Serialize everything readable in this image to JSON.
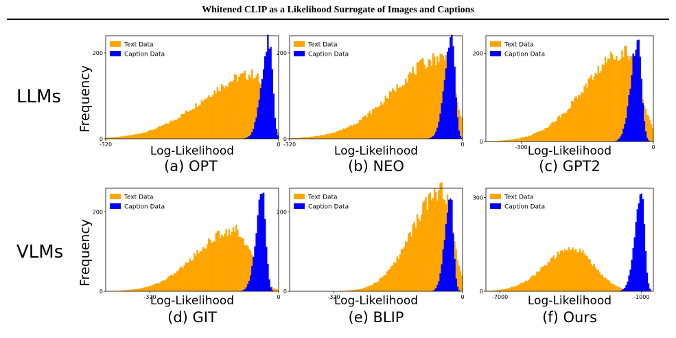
{
  "header": {
    "title": "Whitened CLIP as a Likelihood Surrogate of Images and Captions"
  },
  "rows": {
    "top_label": "LLMs",
    "bottom_label": "VLMs",
    "ylabel": "Frequency"
  },
  "colors": {
    "text": "#FFA500",
    "caption": "#0000FF"
  },
  "chart_data": [
    {
      "id": "a",
      "type": "histogram",
      "caption": "(a) OPT",
      "xlabel": "Log-Likelihood",
      "ylabel": "Frequency",
      "legend": [
        "Text Data",
        "Caption Data"
      ],
      "legend_position": "top-left",
      "x_ticks": [
        "-320",
        "0"
      ],
      "y_ticks": [
        "200",
        "0"
      ],
      "ylim": [
        0,
        240
      ],
      "xlim": [
        -320,
        0
      ],
      "series": [
        {
          "name": "Text Data",
          "color": "#FFA500",
          "peak_x": -45,
          "peak_y": 150,
          "spread_left": 95,
          "spread_right": 20
        },
        {
          "name": "Caption Data",
          "color": "#0000FF",
          "peak_x": -17,
          "peak_y": 230,
          "spread_left": 14,
          "spread_right": 6
        }
      ]
    },
    {
      "id": "b",
      "type": "histogram",
      "caption": "(b) NEO",
      "xlabel": "Log-Likelihood",
      "ylabel": "Frequency",
      "legend": [
        "Text Data",
        "Caption Data"
      ],
      "legend_position": "top-left",
      "x_ticks": [
        "-320",
        "0"
      ],
      "y_ticks": [
        "200",
        "0"
      ],
      "ylim": [
        0,
        240
      ],
      "xlim": [
        -320,
        0
      ],
      "series": [
        {
          "name": "Text Data",
          "color": "#FFA500",
          "peak_x": -35,
          "peak_y": 190,
          "spread_left": 90,
          "spread_right": 20
        },
        {
          "name": "Caption Data",
          "color": "#0000FF",
          "peak_x": -20,
          "peak_y": 230,
          "spread_left": 13,
          "spread_right": 6
        }
      ]
    },
    {
      "id": "c",
      "type": "histogram",
      "caption": "(c) GPT2",
      "xlabel": "Log-Likelihood",
      "ylabel": "Frequency",
      "legend": [
        "Text Data",
        "Caption Data"
      ],
      "legend_position": "top-left",
      "x_ticks": [
        "-300",
        "0"
      ],
      "y_ticks": [
        "200",
        "0"
      ],
      "ylim": [
        0,
        240
      ],
      "xlim": [
        -380,
        0
      ],
      "series": [
        {
          "name": "Text Data",
          "color": "#FFA500",
          "peak_x": -60,
          "peak_y": 205,
          "spread_left": 95,
          "spread_right": 30
        },
        {
          "name": "Caption Data",
          "color": "#0000FF",
          "peak_x": -35,
          "peak_y": 235,
          "spread_left": 16,
          "spread_right": 8
        }
      ]
    },
    {
      "id": "d",
      "type": "histogram",
      "caption": "(d) GIT",
      "xlabel": "Log-Likelihood",
      "ylabel": "Frequency",
      "legend": [
        "Text Data",
        "Caption Data"
      ],
      "legend_position": "top-left",
      "x_ticks": [
        "-320",
        "0"
      ],
      "y_ticks": [
        "200",
        "0"
      ],
      "ylim": [
        0,
        260
      ],
      "xlim": [
        -430,
        0
      ],
      "series": [
        {
          "name": "Text Data",
          "color": "#FFA500",
          "peak_x": -110,
          "peak_y": 155,
          "spread_left": 95,
          "spread_right": 40
        },
        {
          "name": "Caption Data",
          "color": "#0000FF",
          "peak_x": -40,
          "peak_y": 250,
          "spread_left": 16,
          "spread_right": 8
        }
      ]
    },
    {
      "id": "e",
      "type": "histogram",
      "caption": "(e) BLIP",
      "xlabel": "Log-Likelihood",
      "ylabel": "Frequency",
      "legend": [
        "Text Data",
        "Caption Data"
      ],
      "legend_position": "top-left",
      "x_ticks": [
        "-320",
        "0"
      ],
      "y_ticks": [
        "200",
        "0"
      ],
      "ylim": [
        0,
        260
      ],
      "xlim": [
        -430,
        0
      ],
      "series": [
        {
          "name": "Text Data",
          "color": "#FFA500",
          "peak_x": -50,
          "peak_y": 255,
          "spread_left": 75,
          "spread_right": 25
        },
        {
          "name": "Caption Data",
          "color": "#0000FF",
          "peak_x": -30,
          "peak_y": 235,
          "spread_left": 14,
          "spread_right": 7
        }
      ]
    },
    {
      "id": "f",
      "type": "histogram",
      "caption": "(f) Ours",
      "xlabel": "Log-Likelihood",
      "ylabel": "Frequency",
      "legend": [
        "Text Data",
        "Caption Data"
      ],
      "legend_position": "top-left",
      "x_ticks": [
        "-7000",
        "-1000"
      ],
      "y_ticks": [
        "300",
        "0"
      ],
      "ylim": [
        0,
        330
      ],
      "xlim": [
        -7600,
        -500
      ],
      "series": [
        {
          "name": "Text Data",
          "color": "#FFA500",
          "peak_x": -3900,
          "peak_y": 135,
          "spread_left": 1200,
          "spread_right": 900
        },
        {
          "name": "Caption Data",
          "color": "#0000FF",
          "peak_x": -1000,
          "peak_y": 310,
          "spread_left": 280,
          "spread_right": 130
        }
      ]
    }
  ]
}
